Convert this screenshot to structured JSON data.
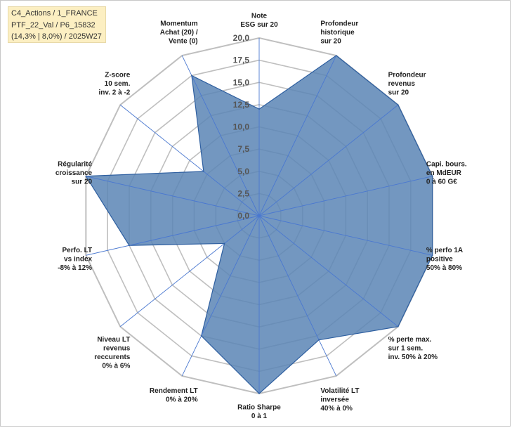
{
  "title_lines": [
    "C4_Actions / 1_FRANCE",
    "PTF_22_Val / P6_15832",
    "(14,3% | 8,0%) / 2025W27"
  ],
  "colors": {
    "fill": "#5b85b5",
    "stroke": "#2e5fa0",
    "grid": "#bfbfbf",
    "spoke": "#4a78d0"
  },
  "chart_data": {
    "type": "radar",
    "axes": [
      [
        "Note",
        "ESG sur 20"
      ],
      [
        "Profondeur",
        "historique",
        "sur 20"
      ],
      [
        "Profondeur",
        "revenus",
        "sur 20"
      ],
      [
        "Capi. bours.",
        "en MdEUR",
        "0 à 60 G€"
      ],
      [
        "% perfo 1A",
        "positive",
        "50% à 80%"
      ],
      [
        "% perte max.",
        "sur 1 sem.",
        "inv. 50% à 20%"
      ],
      [
        "Volatilité LT",
        "inversée",
        "40% à 0%"
      ],
      [
        "Ratio Sharpe",
        "0 à 1"
      ],
      [
        "Rendement LT",
        "0% à 20%"
      ],
      [
        "Niveau LT",
        "revenus",
        "reccurents",
        "0% à 6%"
      ],
      [
        "Perfo. LT",
        "vs index",
        "-8% à 12%"
      ],
      [
        "Régularité",
        "croissance",
        "sur 20"
      ],
      [
        "Z-score",
        "10 sem.",
        "inv. 2 à -2"
      ],
      [
        "Momentum",
        "Achat (20) /",
        "Vente (0)"
      ]
    ],
    "series": [
      {
        "values": [
          12,
          20,
          20,
          20,
          20,
          20,
          15.5,
          20,
          15,
          5,
          15,
          20,
          8,
          17.5
        ]
      }
    ],
    "rmin": 0,
    "rmax": 20,
    "tick_step": 2.5,
    "tick_labels": [
      "0,0",
      "2,5",
      "5,0",
      "7,5",
      "10,0",
      "12,5",
      "15,0",
      "17,5",
      "20,0"
    ],
    "grid": true
  }
}
